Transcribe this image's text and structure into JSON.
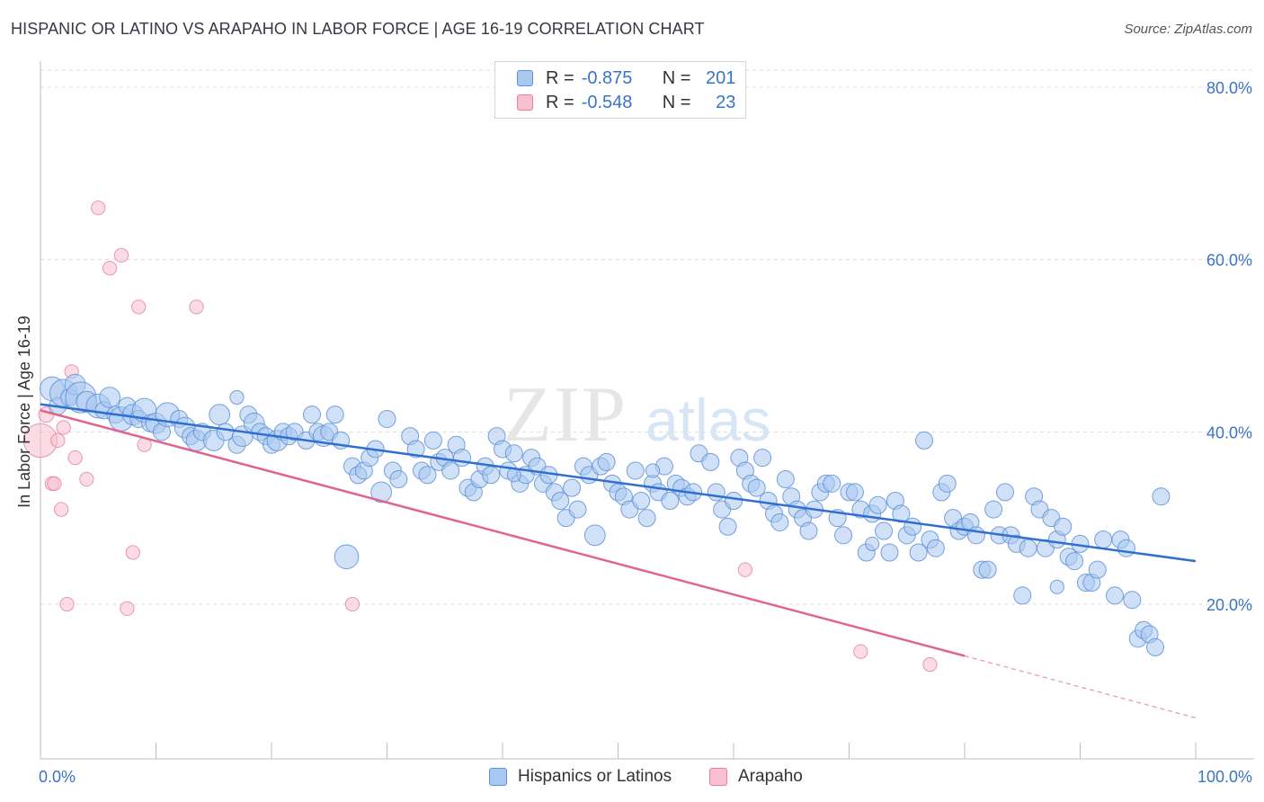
{
  "title": "HISPANIC OR LATINO VS ARAPAHO IN LABOR FORCE | AGE 16-19 CORRELATION CHART",
  "source": "Source: ZipAtlas.com",
  "watermark": {
    "zip": "ZIP",
    "atlas": "atlas"
  },
  "legend": {
    "rows": [
      {
        "r_label": "R =",
        "r_value": "-0.875",
        "n_label": "N =",
        "n_value": "201",
        "color": "#a9c8f0",
        "border": "#5e90d6"
      },
      {
        "r_label": "R =",
        "r_value": "-0.548",
        "n_label": "N =",
        "n_value": "23",
        "color": "#f8c0cf",
        "border": "#e57fa0"
      }
    ]
  },
  "bottom_legend": {
    "hispanic": "Hispanics or Latinos",
    "arapaho": "Arapaho"
  },
  "colors": {
    "blue_fill": "#a9c8f0",
    "blue_stroke": "#5e90d6",
    "blue_line": "#2f6fd1",
    "pink_fill": "#f8c0cf",
    "pink_stroke": "#e57fa0",
    "pink_line": "#e0648f",
    "axis_text": "#3a74c9",
    "grid": "#dcdcdc"
  },
  "chart_data": {
    "type": "scatter",
    "title": "HISPANIC OR LATINO VS ARAPAHO IN LABOR FORCE | AGE 16-19 CORRELATION CHART",
    "xlabel": "",
    "ylabel": "In Labor Force | Age 16-19",
    "xlim": [
      0,
      100
    ],
    "ylim": [
      0,
      80
    ],
    "x_tick_labels": [
      "0.0%",
      "100.0%"
    ],
    "y_ticks": [
      20,
      40,
      60,
      80
    ],
    "y_tick_labels": [
      "20.0%",
      "40.0%",
      "60.0%",
      "80.0%"
    ],
    "grid": true,
    "series": [
      {
        "name": "Hispanics or Latinos",
        "r": -0.875,
        "n": 201,
        "trend": {
          "x0": 0,
          "y0": 43.2,
          "x1": 100,
          "y1": 25.0
        },
        "points": [
          [
            1,
            45,
            14
          ],
          [
            1.5,
            43,
            10
          ],
          [
            2,
            44.5,
            16
          ],
          [
            2.5,
            44,
            10
          ],
          [
            3,
            45.5,
            12
          ],
          [
            3.5,
            44,
            18
          ],
          [
            4,
            43.5,
            12
          ],
          [
            5,
            43,
            14
          ],
          [
            5.5,
            42.5,
            10
          ],
          [
            6,
            44,
            12
          ],
          [
            6.5,
            42,
            10
          ],
          [
            7,
            41.5,
            14
          ],
          [
            7.5,
            43,
            10
          ],
          [
            8,
            42,
            12
          ],
          [
            8.5,
            41.5,
            10
          ],
          [
            9,
            42.5,
            14
          ],
          [
            9.5,
            41,
            10
          ],
          [
            10,
            41,
            12
          ],
          [
            10.5,
            40,
            10
          ],
          [
            11,
            42,
            14
          ],
          [
            12,
            41.5,
            10
          ],
          [
            12.5,
            40.5,
            12
          ],
          [
            13,
            39.5,
            10
          ],
          [
            13.5,
            39,
            12
          ],
          [
            14,
            40,
            10
          ],
          [
            15,
            39,
            12
          ],
          [
            15.5,
            42,
            12
          ],
          [
            16,
            40,
            10
          ],
          [
            17,
            38.5,
            10
          ],
          [
            17.5,
            39.5,
            12
          ],
          [
            18,
            42,
            10
          ],
          [
            18.5,
            41,
            12
          ],
          [
            19,
            40,
            10
          ],
          [
            19.5,
            39.5,
            10
          ],
          [
            20,
            38.5,
            10
          ],
          [
            20.5,
            39,
            12
          ],
          [
            21,
            40,
            10
          ],
          [
            21.5,
            39.5,
            10
          ],
          [
            22,
            40,
            10
          ],
          [
            23,
            39,
            10
          ],
          [
            23.5,
            42,
            10
          ],
          [
            24,
            40,
            10
          ],
          [
            24.5,
            39.5,
            12
          ],
          [
            25,
            40,
            10
          ],
          [
            25.5,
            42,
            10
          ],
          [
            26,
            39,
            10
          ],
          [
            27,
            36,
            10
          ],
          [
            27.5,
            35,
            10
          ],
          [
            28,
            35.5,
            10
          ],
          [
            28.5,
            37,
            10
          ],
          [
            29,
            38,
            10
          ],
          [
            29.5,
            33,
            12
          ],
          [
            30,
            41.5,
            10
          ],
          [
            30.5,
            35.5,
            10
          ],
          [
            31,
            34.5,
            10
          ],
          [
            32,
            39.5,
            10
          ],
          [
            32.5,
            38,
            10
          ],
          [
            33,
            35.5,
            10
          ],
          [
            33.5,
            35,
            10
          ],
          [
            34,
            39,
            10
          ],
          [
            34.5,
            36.5,
            10
          ],
          [
            35,
            37,
            10
          ],
          [
            35.5,
            35.5,
            10
          ],
          [
            36,
            38.5,
            10
          ],
          [
            36.5,
            37,
            10
          ],
          [
            37,
            33.5,
            10
          ],
          [
            37.5,
            33,
            10
          ],
          [
            38,
            34.5,
            10
          ],
          [
            38.5,
            36,
            10
          ],
          [
            39,
            35,
            10
          ],
          [
            39.5,
            39.5,
            10
          ],
          [
            40,
            38,
            10
          ],
          [
            40.5,
            35.5,
            10
          ],
          [
            41,
            37.5,
            10
          ],
          [
            41.5,
            34,
            10
          ],
          [
            42,
            35,
            10
          ],
          [
            42.5,
            37,
            10
          ],
          [
            43,
            36,
            10
          ],
          [
            43.5,
            34,
            10
          ],
          [
            44,
            35,
            10
          ],
          [
            44.5,
            33,
            10
          ],
          [
            45,
            32,
            10
          ],
          [
            45.5,
            30,
            10
          ],
          [
            46,
            33.5,
            10
          ],
          [
            46.5,
            31,
            10
          ],
          [
            47,
            36,
            10
          ],
          [
            47.5,
            35,
            10
          ],
          [
            48,
            28,
            12
          ],
          [
            48.5,
            36,
            10
          ],
          [
            49,
            36.5,
            10
          ],
          [
            49.5,
            34,
            10
          ],
          [
            50,
            33,
            10
          ],
          [
            50.5,
            32.5,
            10
          ],
          [
            51,
            31,
            10
          ],
          [
            51.5,
            35.5,
            10
          ],
          [
            52,
            32,
            10
          ],
          [
            52.5,
            30,
            10
          ],
          [
            53,
            34,
            10
          ],
          [
            53.5,
            33,
            10
          ],
          [
            54,
            36,
            10
          ],
          [
            54.5,
            32,
            10
          ],
          [
            55,
            34,
            10
          ],
          [
            55.5,
            33.5,
            10
          ],
          [
            56,
            32.5,
            10
          ],
          [
            56.5,
            33,
            10
          ],
          [
            57,
            37.5,
            10
          ],
          [
            58,
            36.5,
            10
          ],
          [
            58.5,
            33,
            10
          ],
          [
            59,
            31,
            10
          ],
          [
            59.5,
            29,
            10
          ],
          [
            60,
            32,
            10
          ],
          [
            60.5,
            37,
            10
          ],
          [
            61,
            35.5,
            10
          ],
          [
            61.5,
            34,
            10
          ],
          [
            62,
            33.5,
            10
          ],
          [
            62.5,
            37,
            10
          ],
          [
            63,
            32,
            10
          ],
          [
            63.5,
            30.5,
            10
          ],
          [
            64,
            29.5,
            10
          ],
          [
            64.5,
            34.5,
            10
          ],
          [
            65,
            32.5,
            10
          ],
          [
            65.5,
            31,
            10
          ],
          [
            66,
            30,
            10
          ],
          [
            66.5,
            28.5,
            10
          ],
          [
            67,
            31,
            10
          ],
          [
            67.5,
            33,
            10
          ],
          [
            68,
            34,
            10
          ],
          [
            68.5,
            34,
            10
          ],
          [
            69,
            30,
            10
          ],
          [
            69.5,
            28,
            10
          ],
          [
            70,
            33,
            10
          ],
          [
            70.5,
            33,
            10
          ],
          [
            71,
            31,
            10
          ],
          [
            71.5,
            26,
            10
          ],
          [
            72,
            30.5,
            10
          ],
          [
            72.5,
            31.5,
            10
          ],
          [
            73,
            28.5,
            10
          ],
          [
            73.5,
            26,
            10
          ],
          [
            74,
            32,
            10
          ],
          [
            74.5,
            30.5,
            10
          ],
          [
            75,
            28,
            10
          ],
          [
            75.5,
            29,
            10
          ],
          [
            76,
            26,
            10
          ],
          [
            76.5,
            39,
            10
          ],
          [
            77,
            27.5,
            10
          ],
          [
            77.5,
            26.5,
            10
          ],
          [
            78,
            33,
            10
          ],
          [
            78.5,
            34,
            10
          ],
          [
            79,
            30,
            10
          ],
          [
            79.5,
            28.5,
            10
          ],
          [
            80,
            29,
            10
          ],
          [
            80.5,
            29.5,
            10
          ],
          [
            81,
            28,
            10
          ],
          [
            81.5,
            24,
            10
          ],
          [
            82,
            24,
            10
          ],
          [
            82.5,
            31,
            10
          ],
          [
            83,
            28,
            10
          ],
          [
            83.5,
            33,
            10
          ],
          [
            84,
            28,
            10
          ],
          [
            84.5,
            27,
            10
          ],
          [
            85,
            21,
            10
          ],
          [
            85.5,
            26.5,
            10
          ],
          [
            86,
            32.5,
            10
          ],
          [
            86.5,
            31,
            10
          ],
          [
            87,
            26.5,
            10
          ],
          [
            87.5,
            30,
            10
          ],
          [
            88,
            27.5,
            10
          ],
          [
            88.5,
            29,
            10
          ],
          [
            89,
            25.5,
            10
          ],
          [
            89.5,
            25,
            10
          ],
          [
            90,
            27,
            10
          ],
          [
            90.5,
            22.5,
            10
          ],
          [
            91,
            22.5,
            10
          ],
          [
            91.5,
            24,
            10
          ],
          [
            92,
            27.5,
            10
          ],
          [
            93,
            21,
            10
          ],
          [
            93.5,
            27.5,
            10
          ],
          [
            94,
            26.5,
            10
          ],
          [
            94.5,
            20.5,
            10
          ],
          [
            95,
            16,
            10
          ],
          [
            95.5,
            17,
            10
          ],
          [
            96,
            16.5,
            10
          ],
          [
            96.5,
            15,
            10
          ],
          [
            97,
            32.5,
            10
          ],
          [
            26.5,
            25.5,
            14
          ],
          [
            17,
            44,
            8
          ],
          [
            41,
            35,
            8
          ],
          [
            53,
            35.5,
            8
          ],
          [
            72,
            27,
            8
          ],
          [
            88,
            22,
            8
          ]
        ]
      },
      {
        "name": "Arapaho",
        "r": -0.548,
        "n": 23,
        "trend": {
          "x0": 0,
          "y0": 42.5,
          "x1": 80,
          "y1": 14.0,
          "dash_to_x": 100,
          "dash_to_y": 6.8
        },
        "points": [
          [
            0,
            39,
            22
          ],
          [
            0.5,
            42,
            10
          ],
          [
            1,
            34,
            9
          ],
          [
            1.5,
            39,
            9
          ],
          [
            1.8,
            31,
            9
          ],
          [
            2,
            40.5,
            9
          ],
          [
            2.3,
            20,
            9
          ],
          [
            2.7,
            47,
            9
          ],
          [
            3,
            37,
            9
          ],
          [
            4,
            34.5,
            9
          ],
          [
            5,
            66,
            9
          ],
          [
            6,
            59,
            9
          ],
          [
            7,
            60.5,
            9
          ],
          [
            7.5,
            19.5,
            9
          ],
          [
            8,
            26,
            9
          ],
          [
            8.5,
            54.5,
            9
          ],
          [
            9,
            38.5,
            9
          ],
          [
            13.5,
            54.5,
            9
          ],
          [
            27,
            20,
            9
          ],
          [
            61,
            24,
            9
          ],
          [
            71,
            14.5,
            9
          ],
          [
            77,
            13,
            9
          ],
          [
            1.2,
            34,
            9
          ]
        ]
      }
    ]
  }
}
